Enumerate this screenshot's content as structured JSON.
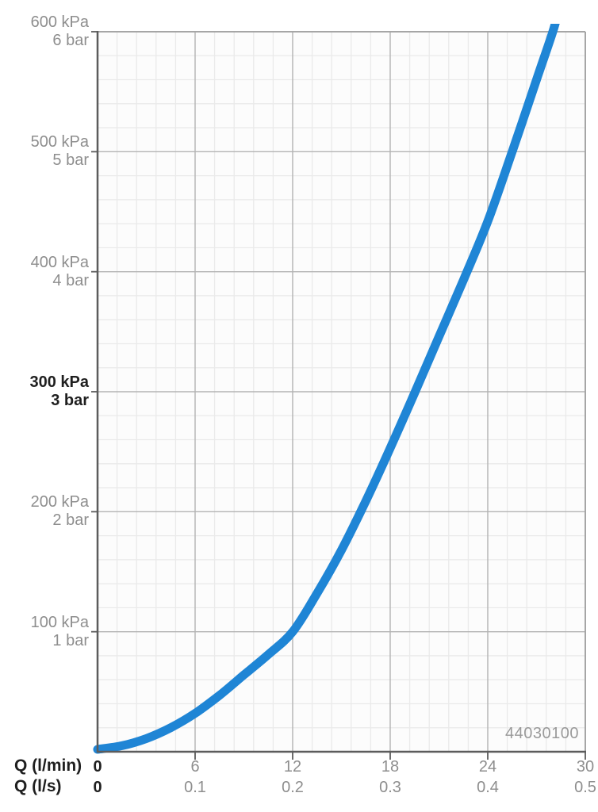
{
  "chart_data": {
    "type": "line",
    "x": {
      "label_lmin": "Q (l/min)",
      "label_ls": "Q (l/s)",
      "range_lmin": [
        0,
        30
      ],
      "range_ls": [
        0,
        0.5
      ],
      "ticks": [
        {
          "lmin": "0",
          "ls": "0",
          "value": 0,
          "bold": true
        },
        {
          "lmin": "6",
          "ls": "0.1",
          "value": 6,
          "bold": false
        },
        {
          "lmin": "12",
          "ls": "0.2",
          "value": 12,
          "bold": false
        },
        {
          "lmin": "18",
          "ls": "0.3",
          "value": 18,
          "bold": false
        },
        {
          "lmin": "24",
          "ls": "0.4",
          "value": 24,
          "bold": false
        },
        {
          "lmin": "30",
          "ls": "0.5",
          "value": 30,
          "bold": false
        }
      ]
    },
    "y": {
      "range_kpa": [
        0,
        600
      ],
      "ticks": [
        {
          "kpa": "600 kPa",
          "bar": "6 bar",
          "value": 600,
          "bold": false
        },
        {
          "kpa": "500 kPa",
          "bar": "5 bar",
          "value": 500,
          "bold": false
        },
        {
          "kpa": "400 kPa",
          "bar": "4 bar",
          "value": 400,
          "bold": false
        },
        {
          "kpa": "300 kPa",
          "bar": "3 bar",
          "value": 300,
          "bold": true
        },
        {
          "kpa": "200 kPa",
          "bar": "2 bar",
          "value": 200,
          "bold": false
        },
        {
          "kpa": "100 kPa",
          "bar": "1 bar",
          "value": 100,
          "bold": false
        }
      ]
    },
    "grid": {
      "minor_x_lmin": 1.2,
      "major_x_lmin": 6,
      "minor_y_kpa": 20,
      "major_y_kpa": 100,
      "grid_on": true
    },
    "series": [
      {
        "name": "pressure-loss-curve",
        "color": "#1f85d5",
        "points_lmin_kpa": [
          [
            0,
            2
          ],
          [
            1.5,
            5
          ],
          [
            3,
            11
          ],
          [
            4.5,
            20
          ],
          [
            6,
            32
          ],
          [
            7.5,
            47
          ],
          [
            9,
            64
          ],
          [
            10.5,
            81
          ],
          [
            12,
            100
          ],
          [
            13.5,
            132
          ],
          [
            15,
            168
          ],
          [
            16.5,
            209
          ],
          [
            18,
            253
          ],
          [
            19.5,
            299
          ],
          [
            21,
            346
          ],
          [
            22.5,
            393
          ],
          [
            24,
            442
          ],
          [
            25.5,
            500
          ],
          [
            27,
            560
          ],
          [
            28,
            600
          ],
          [
            28.4,
            620
          ]
        ]
      }
    ],
    "annotations": {
      "product_code": "44030100"
    },
    "colors": {
      "curve": "#1f85d5",
      "grid_minor": "#eaeaea",
      "grid_major": "#b3b3b3",
      "border": "#a6a6a6",
      "axis": "#5c5c5c",
      "label_gray": "#8e8e8e",
      "label_black": "#1f1f1f",
      "plot_bg": "#fcfcfc"
    }
  }
}
